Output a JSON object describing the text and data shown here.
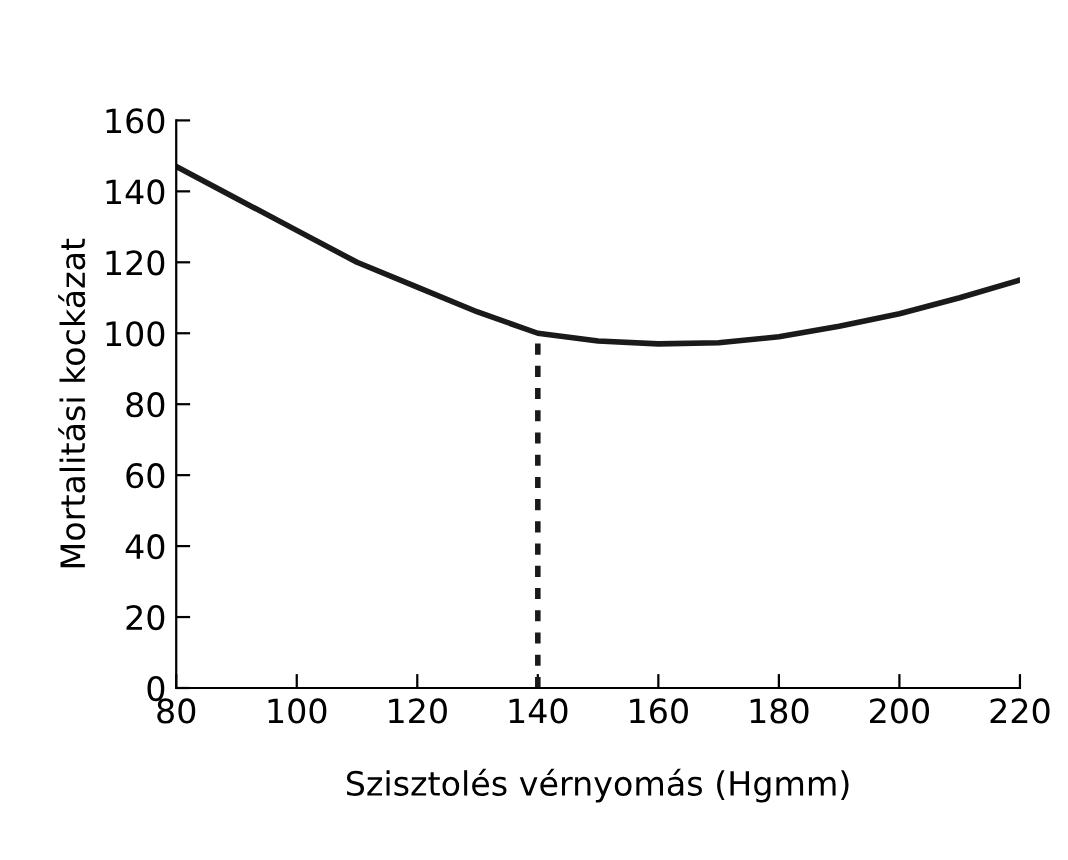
{
  "chart_data": {
    "type": "line",
    "xlabel": "Szisztolés vérnyomás (Hgmm)",
    "ylabel": "Mortalitási kockázat",
    "xlim": [
      80,
      220
    ],
    "xticks": [
      80,
      100,
      120,
      140,
      160,
      180,
      200,
      220
    ],
    "ylim": [
      0,
      160
    ],
    "yticks": [
      0,
      20,
      40,
      60,
      80,
      100,
      120,
      140,
      160
    ],
    "grid": false,
    "legend": false,
    "marker": "none",
    "series": [
      {
        "color": "#1a1a1a",
        "line_style": "solid",
        "x": [
          80,
          90,
          100,
          110,
          120,
          130,
          140,
          150,
          160,
          170,
          180,
          190,
          200,
          210,
          220
        ],
        "values": [
          147,
          138,
          129,
          120,
          113,
          106,
          100,
          97.8,
          97,
          97.3,
          99,
          102,
          105.5,
          110,
          115
        ]
      },
      {
        "color": "#1a1a1a",
        "line_style": "dotted",
        "x": [
          140,
          140
        ],
        "values": [
          0,
          100
        ]
      }
    ]
  }
}
